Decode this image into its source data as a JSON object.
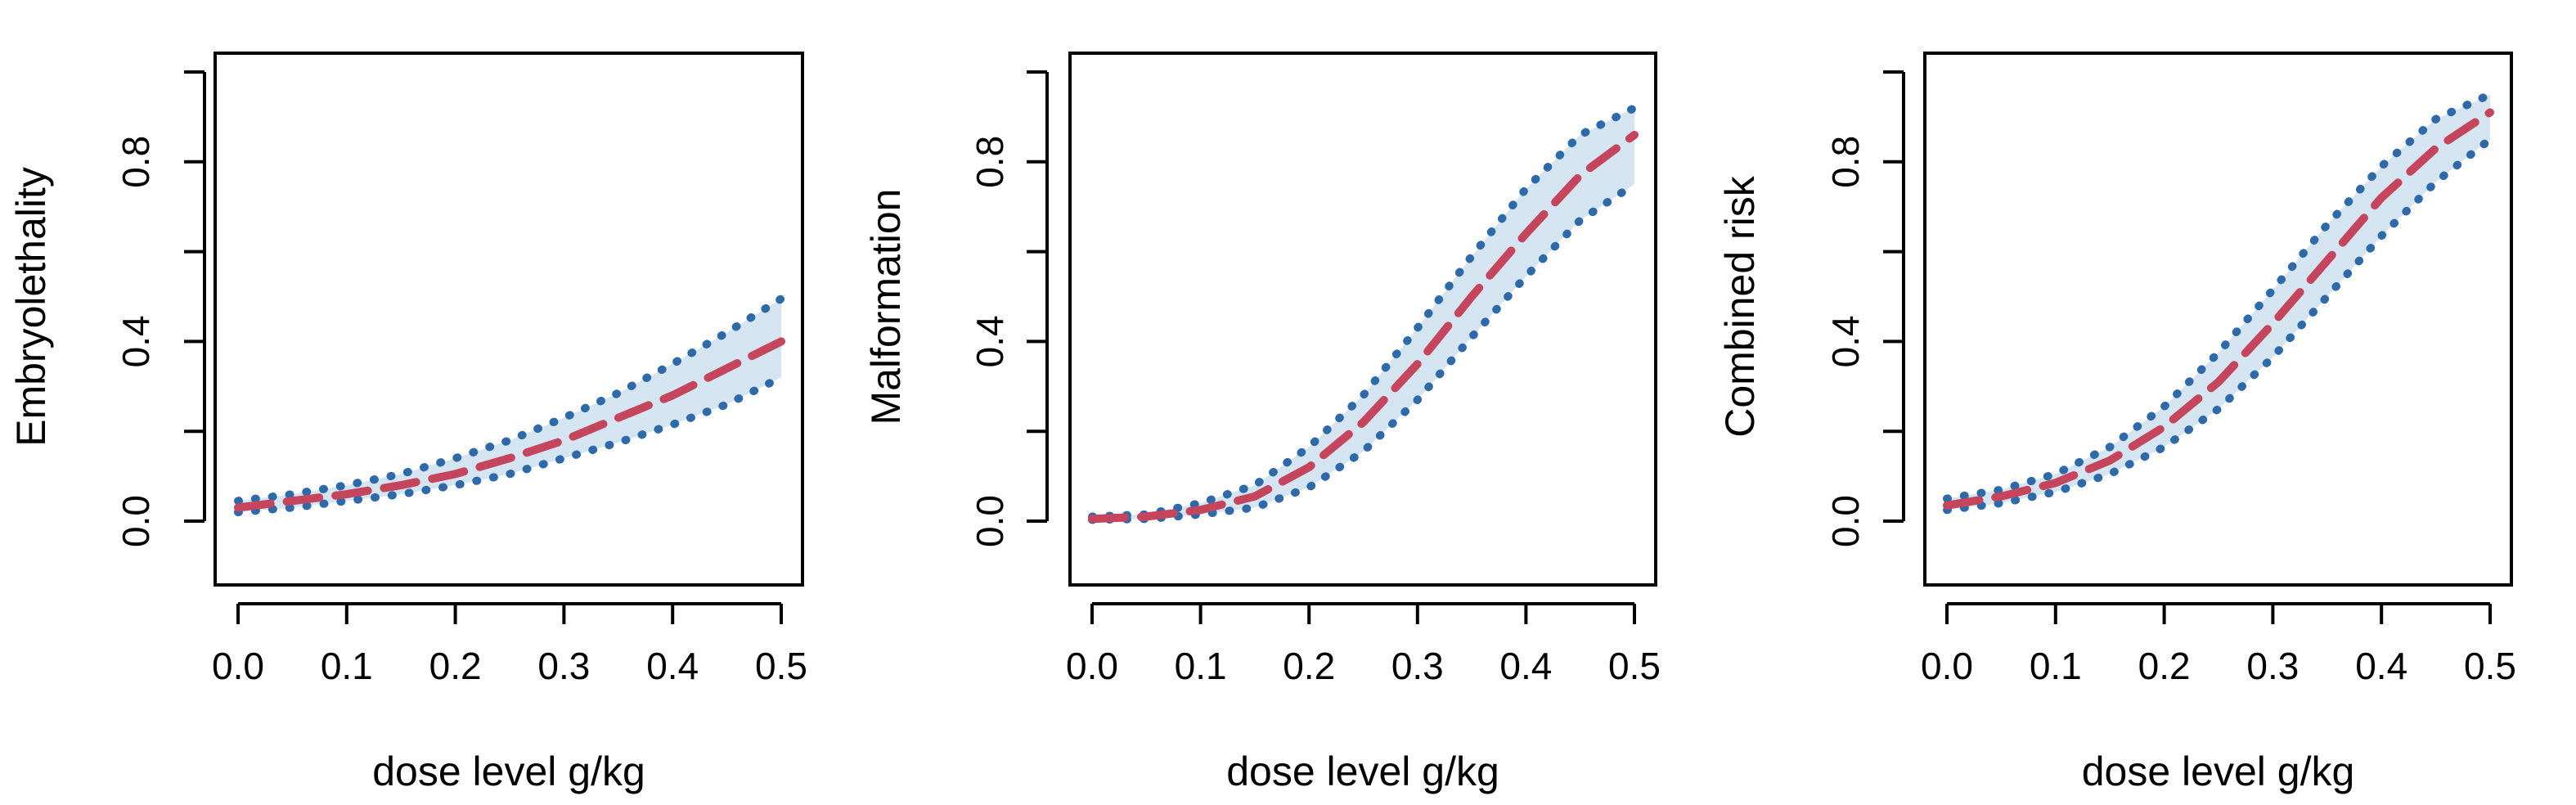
{
  "colors": {
    "band": "#d4e4f0",
    "ci": "#2e6aaa",
    "mean": "#c4455c",
    "axis": "#000000"
  },
  "chart_data": [
    {
      "type": "line",
      "title": "",
      "xlabel": "dose level g/kg",
      "ylabel": "Embryolethality",
      "xlim": [
        0,
        0.5
      ],
      "ylim": [
        -0.14,
        1.04
      ],
      "xticks": [
        0.0,
        0.1,
        0.2,
        0.3,
        0.4,
        0.5
      ],
      "xtick_labels": [
        "0.0",
        "0.1",
        "0.2",
        "0.3",
        "0.4",
        "0.5"
      ],
      "yticks": [
        0.0,
        0.2,
        0.4,
        0.6,
        0.8,
        1.0
      ],
      "ytick_labels": [
        "0.0",
        "",
        "0.4",
        "",
        "0.8",
        ""
      ],
      "x": [
        0.0,
        0.05,
        0.1,
        0.15,
        0.2,
        0.25,
        0.3,
        0.35,
        0.4,
        0.45,
        0.5
      ],
      "series": [
        {
          "name": "mean",
          "style": "dashed",
          "values": [
            0.03,
            0.045,
            0.06,
            0.08,
            0.105,
            0.14,
            0.18,
            0.23,
            0.28,
            0.34,
            0.4
          ]
        },
        {
          "name": "upper",
          "style": "dotted",
          "values": [
            0.045,
            0.06,
            0.08,
            0.105,
            0.14,
            0.18,
            0.23,
            0.285,
            0.35,
            0.42,
            0.495
          ]
        },
        {
          "name": "lower",
          "style": "dotted",
          "values": [
            0.02,
            0.03,
            0.045,
            0.06,
            0.08,
            0.105,
            0.14,
            0.175,
            0.215,
            0.26,
            0.32
          ]
        }
      ]
    },
    {
      "type": "line",
      "title": "",
      "xlabel": "dose level g/kg",
      "ylabel": "Malformation",
      "xlim": [
        0,
        0.5
      ],
      "ylim": [
        -0.14,
        1.04
      ],
      "xticks": [
        0.0,
        0.1,
        0.2,
        0.3,
        0.4,
        0.5
      ],
      "xtick_labels": [
        "0.0",
        "0.1",
        "0.2",
        "0.3",
        "0.4",
        "0.5"
      ],
      "yticks": [
        0.0,
        0.2,
        0.4,
        0.6,
        0.8,
        1.0
      ],
      "ytick_labels": [
        "0.0",
        "",
        "0.4",
        "",
        "0.8",
        ""
      ],
      "x": [
        0.0,
        0.05,
        0.1,
        0.15,
        0.2,
        0.25,
        0.3,
        0.35,
        0.4,
        0.45,
        0.5
      ],
      "series": [
        {
          "name": "mean",
          "style": "dashed",
          "values": [
            0.005,
            0.01,
            0.025,
            0.055,
            0.12,
            0.22,
            0.35,
            0.5,
            0.64,
            0.77,
            0.86
          ]
        },
        {
          "name": "upper",
          "style": "dotted",
          "values": [
            0.01,
            0.015,
            0.04,
            0.08,
            0.165,
            0.28,
            0.43,
            0.59,
            0.74,
            0.86,
            0.92
          ]
        },
        {
          "name": "lower",
          "style": "dotted",
          "values": [
            0.003,
            0.005,
            0.015,
            0.03,
            0.075,
            0.155,
            0.27,
            0.41,
            0.545,
            0.67,
            0.75
          ]
        }
      ]
    },
    {
      "type": "line",
      "title": "",
      "xlabel": "dose level g/kg",
      "ylabel": "Combined risk",
      "xlim": [
        0,
        0.5
      ],
      "ylim": [
        -0.14,
        1.04
      ],
      "xticks": [
        0.0,
        0.1,
        0.2,
        0.3,
        0.4,
        0.5
      ],
      "xtick_labels": [
        "0.0",
        "0.1",
        "0.2",
        "0.3",
        "0.4",
        "0.5"
      ],
      "yticks": [
        0.0,
        0.2,
        0.4,
        0.6,
        0.8,
        1.0
      ],
      "ytick_labels": [
        "0.0",
        "",
        "0.4",
        "",
        "0.8",
        ""
      ],
      "x": [
        0.0,
        0.05,
        0.1,
        0.15,
        0.2,
        0.25,
        0.3,
        0.35,
        0.4,
        0.45,
        0.5
      ],
      "series": [
        {
          "name": "mean",
          "style": "dashed",
          "values": [
            0.035,
            0.055,
            0.085,
            0.135,
            0.21,
            0.31,
            0.44,
            0.58,
            0.72,
            0.83,
            0.91
          ]
        },
        {
          "name": "upper",
          "style": "dotted",
          "values": [
            0.05,
            0.07,
            0.105,
            0.165,
            0.255,
            0.375,
            0.515,
            0.66,
            0.79,
            0.895,
            0.95
          ]
        },
        {
          "name": "lower",
          "style": "dotted",
          "values": [
            0.025,
            0.04,
            0.065,
            0.105,
            0.165,
            0.25,
            0.365,
            0.5,
            0.635,
            0.755,
            0.85
          ]
        }
      ]
    }
  ]
}
